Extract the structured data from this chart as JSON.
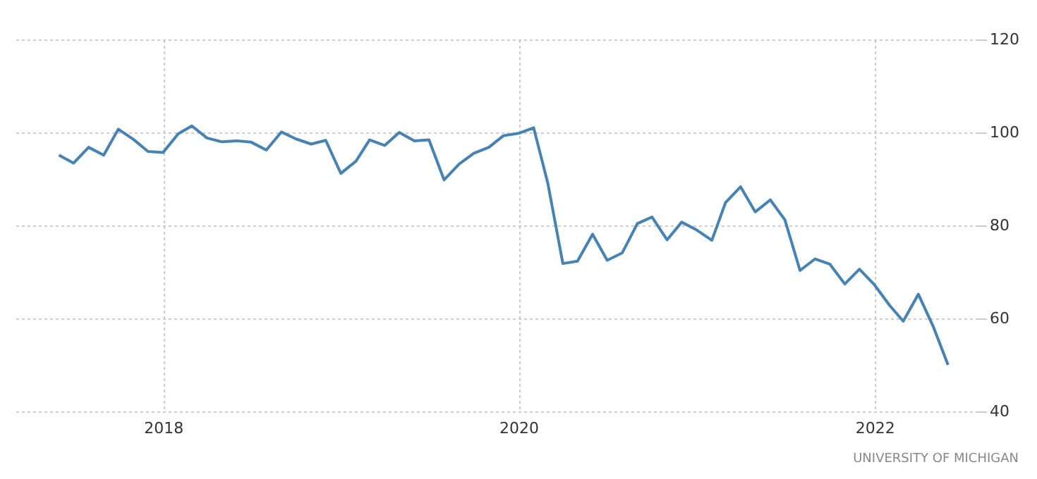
{
  "chart_data": {
    "type": "line",
    "x": [
      "2017-06",
      "2017-07",
      "2017-08",
      "2017-09",
      "2017-10",
      "2017-11",
      "2017-12",
      "2018-01",
      "2018-02",
      "2018-03",
      "2018-04",
      "2018-05",
      "2018-06",
      "2018-07",
      "2018-08",
      "2018-09",
      "2018-10",
      "2018-11",
      "2018-12",
      "2019-01",
      "2019-02",
      "2019-03",
      "2019-04",
      "2019-05",
      "2019-06",
      "2019-07",
      "2019-08",
      "2019-09",
      "2019-10",
      "2019-11",
      "2019-12",
      "2020-01",
      "2020-02",
      "2020-03",
      "2020-04",
      "2020-05",
      "2020-06",
      "2020-07",
      "2020-08",
      "2020-09",
      "2020-10",
      "2020-11",
      "2020-12",
      "2021-01",
      "2021-02",
      "2021-03",
      "2021-04",
      "2021-05",
      "2021-06",
      "2021-07",
      "2021-08",
      "2021-09",
      "2021-10",
      "2021-11",
      "2021-12",
      "2022-01",
      "2022-02",
      "2022-03",
      "2022-04",
      "2022-05",
      "2022-06"
    ],
    "series": [
      {
        "color": "#4682b4",
        "values": [
          95.1,
          93.4,
          96.8,
          95.1,
          100.7,
          98.5,
          95.9,
          95.7,
          99.7,
          101.4,
          98.8,
          98.0,
          98.2,
          97.9,
          96.2,
          100.1,
          98.6,
          97.5,
          98.3,
          91.2,
          93.8,
          98.4,
          97.2,
          100.0,
          98.2,
          98.4,
          89.8,
          93.2,
          95.5,
          96.8,
          99.3,
          99.8,
          101.0,
          89.1,
          71.8,
          72.3,
          78.1,
          72.5,
          74.1,
          80.4,
          81.8,
          76.9,
          80.7,
          79.0,
          76.8,
          84.9,
          88.3,
          82.9,
          85.5,
          81.2,
          70.3,
          72.8,
          71.7,
          67.4,
          70.6,
          67.2,
          62.8,
          59.4,
          65.2,
          58.4,
          50.0
        ]
      }
    ],
    "xlim": [
      "2017-03",
      "2022-08"
    ],
    "xticks": [
      "2018",
      "2020",
      "2022"
    ],
    "ylim": [
      40,
      120
    ],
    "yticks": [
      40,
      60,
      80,
      100,
      120
    ],
    "grid": true,
    "marker": "none",
    "line_style": "solid",
    "annotations": [
      "UNIVERSITY OF MICHIGAN"
    ]
  }
}
